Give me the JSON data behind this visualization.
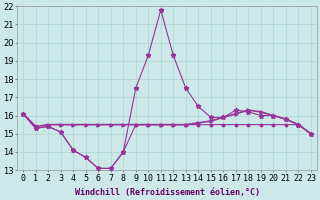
{
  "xlabel": "Windchill (Refroidissement éolien,°C)",
  "x": [
    0,
    1,
    2,
    3,
    4,
    5,
    6,
    7,
    8,
    9,
    10,
    11,
    12,
    13,
    14,
    15,
    16,
    17,
    18,
    19,
    20,
    21,
    22,
    23
  ],
  "line_low": [
    16.1,
    15.3,
    15.4,
    15.1,
    14.1,
    13.7,
    13.1,
    13.1,
    14.0,
    15.5,
    15.5,
    15.5,
    15.5,
    15.5,
    15.5,
    15.5,
    15.5,
    15.5,
    15.5,
    15.5,
    15.5,
    15.5,
    15.5,
    15.0
  ],
  "line_peak": [
    16.1,
    15.3,
    15.4,
    15.1,
    14.1,
    13.7,
    13.1,
    13.1,
    14.0,
    17.5,
    19.3,
    21.8,
    19.3,
    17.5,
    16.5,
    15.9,
    15.9,
    16.3,
    16.2,
    16.0,
    16.0,
    15.8,
    15.5,
    15.0
  ],
  "line_flat": [
    16.1,
    15.4,
    15.5,
    15.5,
    15.5,
    15.5,
    15.5,
    15.5,
    15.5,
    15.5,
    15.5,
    15.5,
    15.5,
    15.5,
    15.6,
    15.7,
    15.9,
    16.1,
    16.3,
    16.2,
    16.0,
    15.8,
    15.5,
    15.0
  ],
  "line_color": "#993399",
  "bg_color": "#cce8e8",
  "grid_color": "#aad4d4",
  "ylim": [
    13,
    22
  ],
  "yticks": [
    13,
    14,
    15,
    16,
    17,
    18,
    19,
    20,
    21,
    22
  ],
  "xlabel_fontsize": 6,
  "tick_fontsize": 6
}
